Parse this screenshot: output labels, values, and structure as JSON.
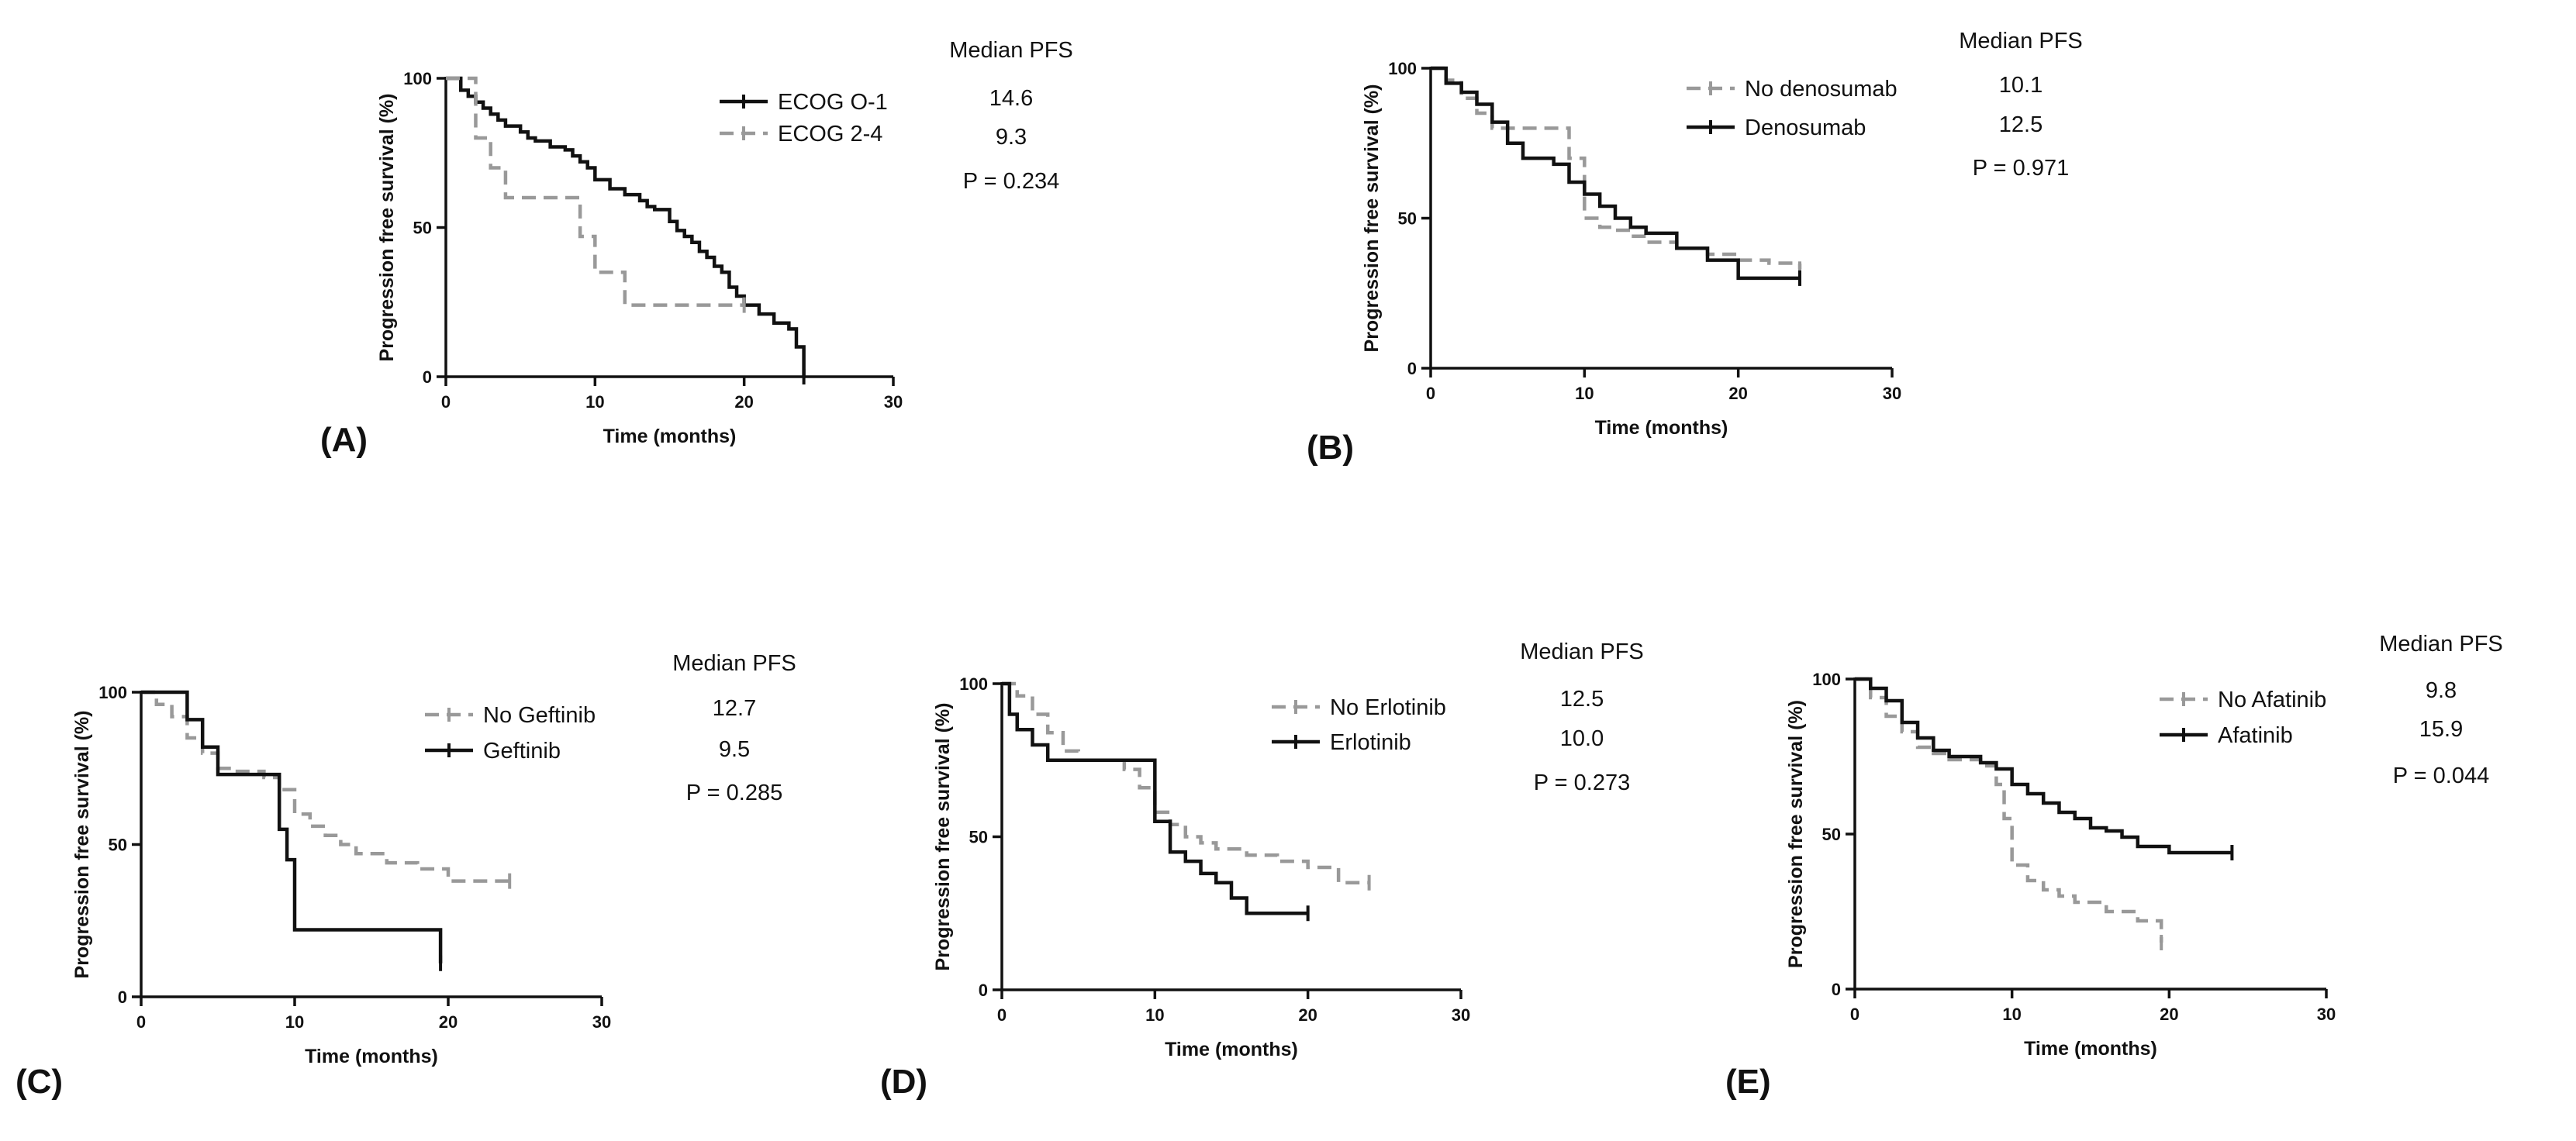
{
  "chart_data": [
    {
      "type": "line",
      "panel_label": "(A)",
      "xlabel": "Time (months)",
      "ylabel": "Progression free survival (%)",
      "xlim": [
        0,
        30
      ],
      "ylim": [
        0,
        100
      ],
      "xticks": [
        0,
        10,
        20,
        30
      ],
      "yticks": [
        0,
        50,
        100
      ],
      "stats_title": "Median PFS",
      "p_value": "P = 0.234",
      "legend_position": "top-right",
      "series": [
        {
          "name": "ECOG O-1",
          "median": "14.6",
          "style": "solid",
          "color": "#111111",
          "x": [
            0,
            1,
            1.5,
            2,
            2.5,
            3,
            3.5,
            4,
            5,
            5.5,
            6,
            7,
            8,
            8.5,
            9,
            9.5,
            10,
            11,
            12,
            13,
            13.5,
            14,
            15,
            15.5,
            16,
            16.5,
            17,
            17.5,
            18,
            18.5,
            19,
            19.5,
            20,
            21,
            22,
            23,
            23.5,
            24
          ],
          "y": [
            100,
            96,
            94,
            92,
            90,
            88,
            86,
            84,
            82,
            80,
            79,
            77,
            76,
            74,
            72,
            70,
            66,
            63,
            61,
            59,
            57,
            56,
            52,
            49,
            47,
            45,
            42,
            40,
            37,
            35,
            30,
            27,
            24,
            21,
            18,
            16,
            10,
            0
          ]
        },
        {
          "name": "ECOG 2-4",
          "median": "9.3",
          "style": "dashed",
          "color": "#999999",
          "x": [
            0,
            2,
            3,
            4,
            9,
            10,
            12,
            20
          ],
          "y": [
            100,
            80,
            70,
            60,
            47,
            35,
            24,
            24
          ]
        }
      ]
    },
    {
      "type": "line",
      "panel_label": "(B)",
      "xlabel": "Time (months)",
      "ylabel": "Progression free survival (%)",
      "xlim": [
        0,
        30
      ],
      "ylim": [
        0,
        100
      ],
      "xticks": [
        0,
        10,
        20,
        30
      ],
      "yticks": [
        0,
        50,
        100
      ],
      "stats_title": "Median PFS",
      "p_value": "P = 0.971",
      "legend_position": "top-right",
      "series": [
        {
          "name": "No denosumab",
          "median": "10.1",
          "style": "dashed",
          "color": "#999999",
          "x": [
            0,
            1,
            2,
            3,
            4,
            5,
            8,
            9,
            10,
            11,
            12,
            13,
            14,
            16,
            18,
            20,
            22,
            24
          ],
          "y": [
            100,
            96,
            90,
            85,
            80,
            80,
            80,
            70,
            50,
            47,
            46,
            44,
            42,
            40,
            38,
            36,
            35,
            33
          ]
        },
        {
          "name": "Denosumab",
          "median": "12.5",
          "style": "solid",
          "color": "#111111",
          "x": [
            0,
            1,
            2,
            3,
            4,
            5,
            6,
            8,
            9,
            10,
            11,
            12,
            13,
            14,
            16,
            18,
            20,
            22,
            24
          ],
          "y": [
            100,
            95,
            92,
            88,
            82,
            75,
            70,
            68,
            62,
            58,
            54,
            50,
            47,
            45,
            40,
            36,
            30,
            30,
            30
          ]
        }
      ]
    },
    {
      "type": "line",
      "panel_label": "(C)",
      "xlabel": "Time (months)",
      "ylabel": "Progression free survival (%)",
      "xlim": [
        0,
        30
      ],
      "ylim": [
        0,
        100
      ],
      "xticks": [
        0,
        10,
        20,
        30
      ],
      "yticks": [
        0,
        50,
        100
      ],
      "stats_title": "Median PFS",
      "p_value": "P = 0.285",
      "legend_position": "top-right",
      "series": [
        {
          "name": "No Geftinib",
          "median": "12.7",
          "style": "dashed",
          "color": "#999999",
          "x": [
            0,
            1,
            2,
            3,
            4,
            5,
            6,
            8,
            9,
            10,
            11,
            12,
            13,
            14,
            16,
            18,
            20,
            22,
            24
          ],
          "y": [
            100,
            96,
            92,
            85,
            80,
            75,
            74,
            72,
            68,
            60,
            56,
            53,
            50,
            47,
            44,
            42,
            38,
            38,
            38
          ]
        },
        {
          "name": "Geftinib",
          "median": "9.5",
          "style": "solid",
          "color": "#111111",
          "x": [
            0,
            2,
            3,
            4,
            5,
            8,
            9,
            9.5,
            10,
            19,
            19.5
          ],
          "y": [
            100,
            100,
            91,
            82,
            73,
            73,
            55,
            45,
            22,
            22,
            11
          ]
        }
      ]
    },
    {
      "type": "line",
      "panel_label": "(D)",
      "xlabel": "Time (months)",
      "ylabel": "Progression free survival (%)",
      "xlim": [
        0,
        30
      ],
      "ylim": [
        0,
        100
      ],
      "xticks": [
        0,
        10,
        20,
        30
      ],
      "yticks": [
        0,
        50,
        100
      ],
      "stats_title": "Median PFS",
      "p_value": "P = 0.273",
      "legend_position": "top-right",
      "series": [
        {
          "name": "No Erlotinib",
          "median": "12.5",
          "style": "dashed",
          "color": "#999999",
          "x": [
            0,
            1,
            2,
            3,
            4,
            5,
            8,
            9,
            10,
            11,
            12,
            13,
            14,
            16,
            18,
            20,
            22,
            24
          ],
          "y": [
            100,
            96,
            90,
            84,
            78,
            75,
            72,
            66,
            58,
            54,
            50,
            48,
            46,
            44,
            42,
            40,
            35,
            35
          ]
        },
        {
          "name": "Erlotinib",
          "median": "10.0",
          "style": "solid",
          "color": "#111111",
          "x": [
            0,
            0.5,
            1,
            2,
            3,
            9,
            10,
            11,
            12,
            13,
            14,
            15,
            16,
            18,
            20
          ],
          "y": [
            100,
            90,
            85,
            80,
            75,
            75,
            55,
            45,
            42,
            38,
            35,
            30,
            25,
            25,
            25
          ]
        }
      ]
    },
    {
      "type": "line",
      "panel_label": "(E)",
      "xlabel": "Time (months)",
      "ylabel": "Progression free survival (%)",
      "xlim": [
        0,
        30
      ],
      "ylim": [
        0,
        100
      ],
      "xticks": [
        0,
        10,
        20,
        30
      ],
      "yticks": [
        0,
        50,
        100
      ],
      "stats_title": "Median PFS",
      "p_value": "P = 0.044",
      "legend_position": "top-right",
      "series": [
        {
          "name": "No Afatinib",
          "median": "9.8",
          "style": "dashed",
          "color": "#999999",
          "x": [
            0,
            1,
            2,
            3,
            4,
            5,
            6,
            8,
            9,
            9.5,
            10,
            11,
            12,
            13,
            14,
            16,
            18,
            19,
            19.5
          ],
          "y": [
            100,
            94,
            88,
            83,
            78,
            76,
            74,
            72,
            66,
            55,
            40,
            35,
            32,
            30,
            28,
            25,
            22,
            22,
            15
          ]
        },
        {
          "name": "Afatinib",
          "median": "15.9",
          "style": "solid",
          "color": "#111111",
          "x": [
            0,
            1,
            2,
            3,
            4,
            5,
            6,
            8,
            9,
            10,
            11,
            12,
            13,
            14,
            15,
            16,
            17,
            18,
            20,
            22,
            24
          ],
          "y": [
            100,
            97,
            93,
            86,
            81,
            77,
            75,
            73,
            71,
            66,
            63,
            60,
            57,
            55,
            52,
            51,
            49,
            46,
            44,
            44,
            44
          ]
        }
      ]
    }
  ]
}
